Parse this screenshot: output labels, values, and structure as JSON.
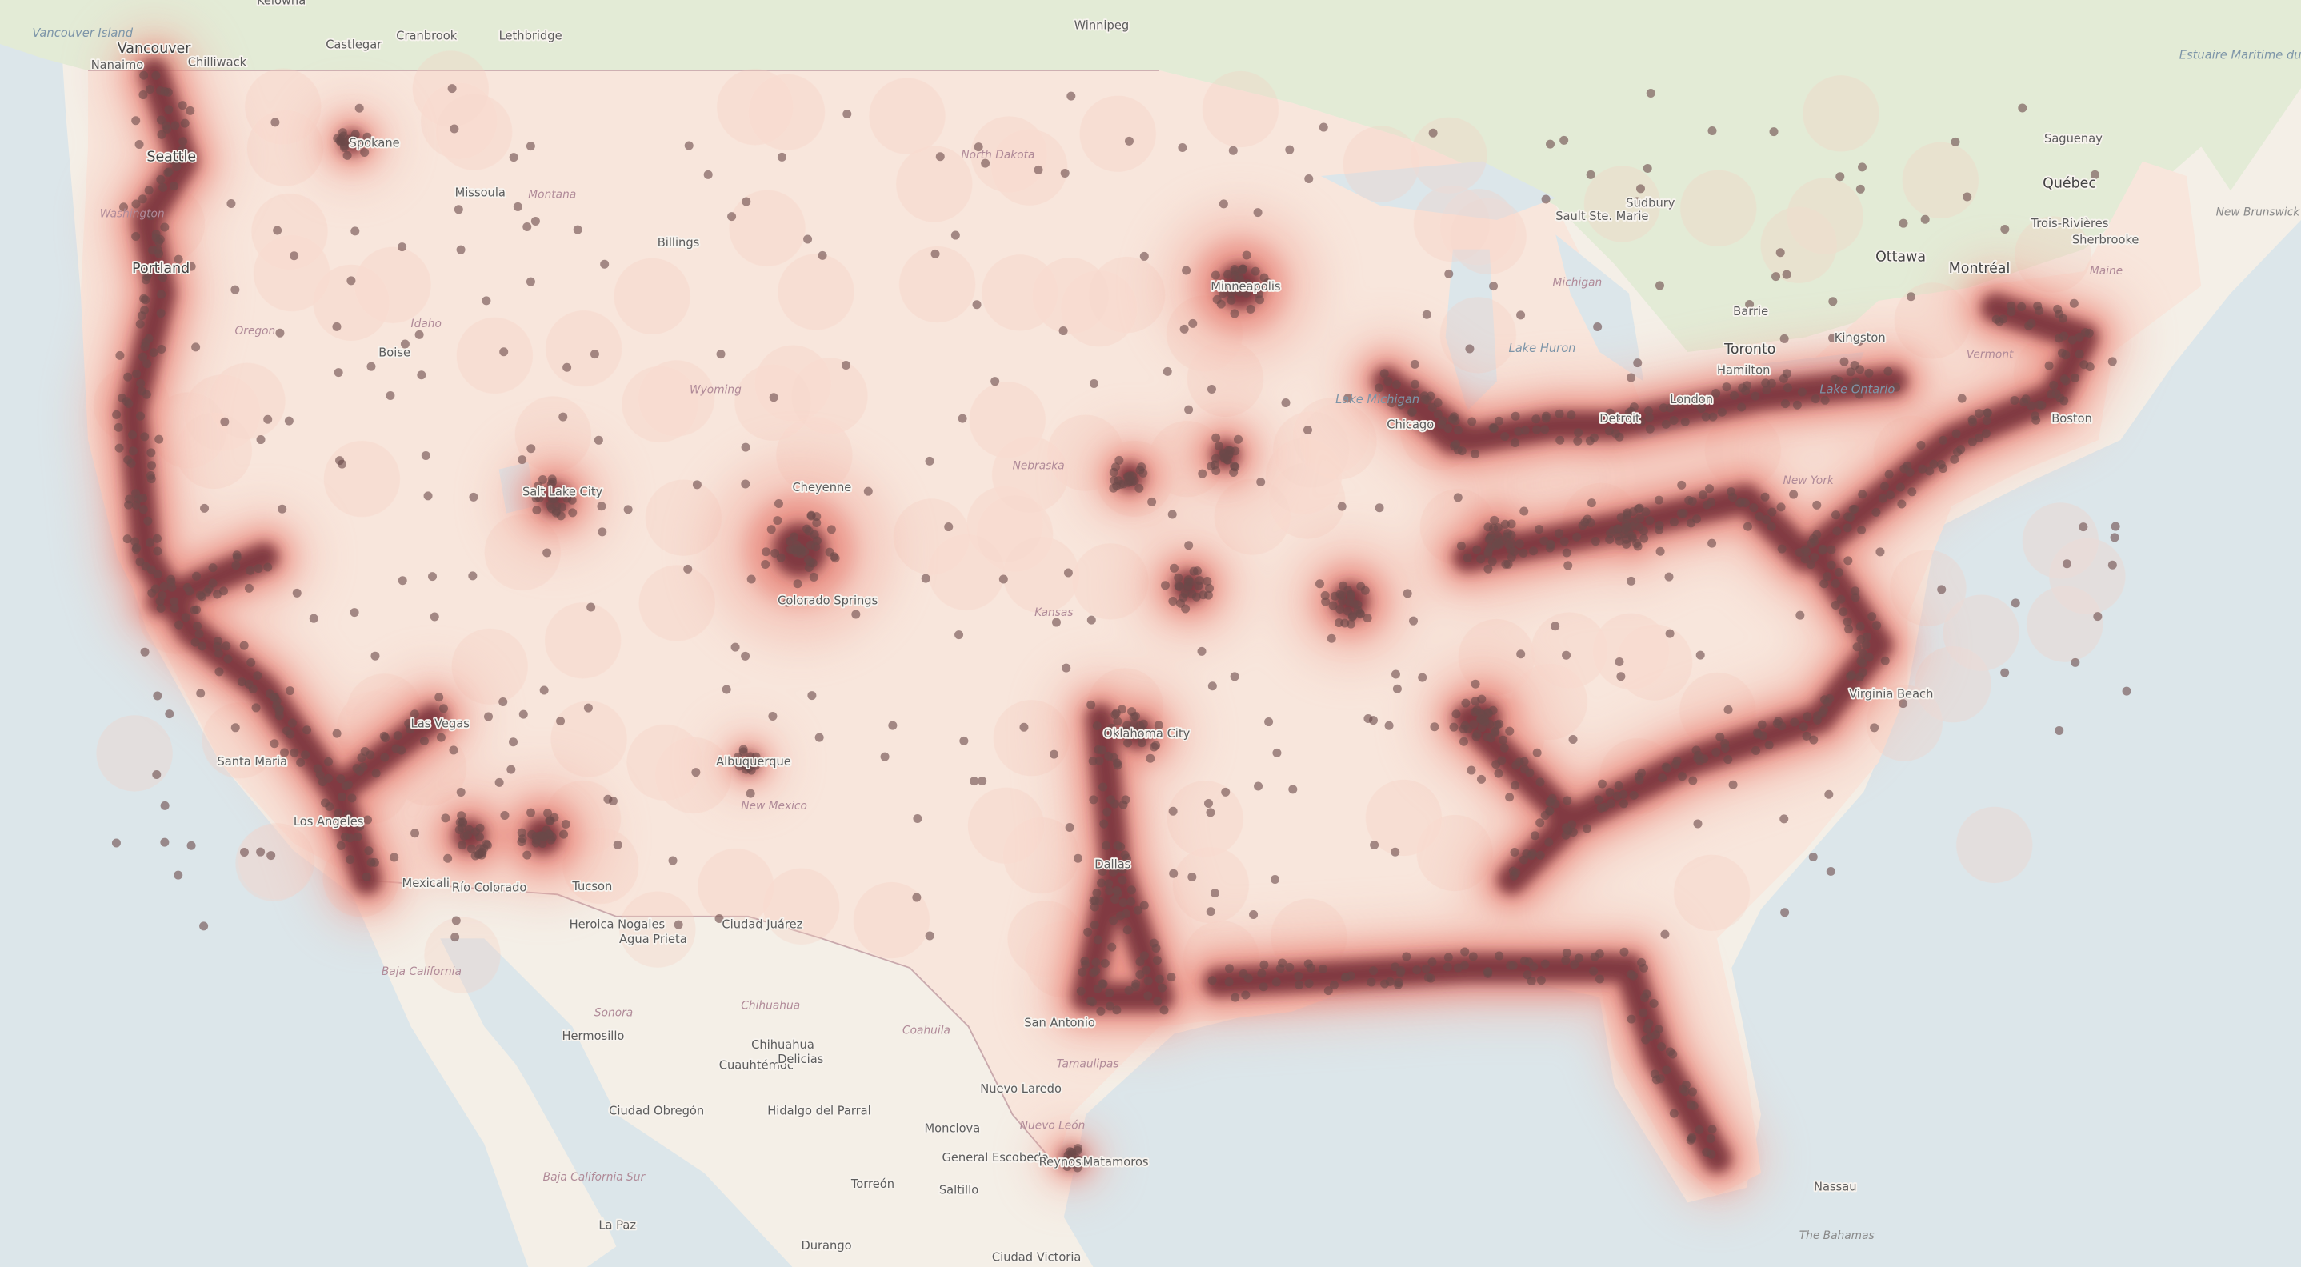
{
  "map": {
    "type": "heatmap-with-points",
    "colors": {
      "ocean": "#dce6ea",
      "land": "#f4efe7",
      "canada_forest": "#e3ebd6",
      "heat_low": "#f7cfc2",
      "heat_mid": "#e26a5e",
      "heat_high": "#6e2a36",
      "point": "#6b4a4a"
    },
    "labels": [
      {
        "text": "Vancouver Island",
        "kind": "water"
      },
      {
        "text": "Vancouver",
        "kind": "big"
      },
      {
        "text": "Nanaimo",
        "kind": "city"
      },
      {
        "text": "Chilliwack",
        "kind": "city"
      },
      {
        "text": "Kelowna",
        "kind": "city"
      },
      {
        "text": "Castlegar",
        "kind": "city"
      },
      {
        "text": "Cranbrook",
        "kind": "city"
      },
      {
        "text": "Lethbridge",
        "kind": "city"
      },
      {
        "text": "Winnipeg",
        "kind": "city"
      },
      {
        "text": "Seattle",
        "kind": "big"
      },
      {
        "text": "Portland",
        "kind": "big"
      },
      {
        "text": "Spokane",
        "kind": "city"
      },
      {
        "text": "Missoula",
        "kind": "city"
      },
      {
        "text": "Billings",
        "kind": "city"
      },
      {
        "text": "Boise",
        "kind": "city"
      },
      {
        "text": "Salt Lake City",
        "kind": "city"
      },
      {
        "text": "Cheyenne",
        "kind": "city"
      },
      {
        "text": "Colorado Springs",
        "kind": "city"
      },
      {
        "text": "Albuquerque",
        "kind": "city"
      },
      {
        "text": "Las Vegas",
        "kind": "city"
      },
      {
        "text": "Los Angeles",
        "kind": "city"
      },
      {
        "text": "Santa Maria",
        "kind": "city"
      },
      {
        "text": "Mexicali",
        "kind": "city"
      },
      {
        "text": "Río Colorado",
        "kind": "city"
      },
      {
        "text": "Tucson",
        "kind": "city"
      },
      {
        "text": "Heroica Nogales",
        "kind": "city"
      },
      {
        "text": "Agua Prieta",
        "kind": "city"
      },
      {
        "text": "Ciudad Juárez",
        "kind": "city"
      },
      {
        "text": "Hermosillo",
        "kind": "city"
      },
      {
        "text": "Chihuahua",
        "kind": "city"
      },
      {
        "text": "Cuauhtémoc",
        "kind": "city"
      },
      {
        "text": "Delicias",
        "kind": "city"
      },
      {
        "text": "Hidalgo del Parral",
        "kind": "city"
      },
      {
        "text": "Ciudad Obregón",
        "kind": "city"
      },
      {
        "text": "Torreón",
        "kind": "city"
      },
      {
        "text": "Monclova",
        "kind": "city"
      },
      {
        "text": "Saltillo",
        "kind": "city"
      },
      {
        "text": "General Escobedo",
        "kind": "city"
      },
      {
        "text": "Nuevo Laredo",
        "kind": "city"
      },
      {
        "text": "Reynosa",
        "kind": "city"
      },
      {
        "text": "Matamoros",
        "kind": "city"
      },
      {
        "text": "Durango",
        "kind": "city"
      },
      {
        "text": "Ciudad Victoria",
        "kind": "city"
      },
      {
        "text": "La Paz",
        "kind": "city"
      },
      {
        "text": "San Antonio",
        "kind": "city"
      },
      {
        "text": "Dallas",
        "kind": "city"
      },
      {
        "text": "Oklahoma City",
        "kind": "city"
      },
      {
        "text": "Minneapolis",
        "kind": "city"
      },
      {
        "text": "Chicago",
        "kind": "city"
      },
      {
        "text": "Detroit",
        "kind": "city"
      },
      {
        "text": "Sault Ste. Marie",
        "kind": "city"
      },
      {
        "text": "Sudbury",
        "kind": "city"
      },
      {
        "text": "Barrie",
        "kind": "city"
      },
      {
        "text": "Toronto",
        "kind": "big"
      },
      {
        "text": "Hamilton",
        "kind": "city"
      },
      {
        "text": "London",
        "kind": "city"
      },
      {
        "text": "Kingston",
        "kind": "city"
      },
      {
        "text": "Ottawa",
        "kind": "big"
      },
      {
        "text": "Montréal",
        "kind": "big"
      },
      {
        "text": "Québec",
        "kind": "big"
      },
      {
        "text": "Trois-Rivières",
        "kind": "city"
      },
      {
        "text": "Sherbrooke",
        "kind": "city"
      },
      {
        "text": "Saguenay",
        "kind": "city"
      },
      {
        "text": "Estuaire Maritime du Fleuve Saint Laurent",
        "kind": "water"
      },
      {
        "text": "New Brunswick / Nouveau-Brunswick",
        "kind": "region"
      },
      {
        "text": "Boston",
        "kind": "city"
      },
      {
        "text": "Virginia Beach",
        "kind": "city"
      },
      {
        "text": "Nassau",
        "kind": "city"
      },
      {
        "text": "The Bahamas",
        "kind": "region"
      },
      {
        "text": "Lake Huron",
        "kind": "water"
      },
      {
        "text": "Lake Michigan",
        "kind": "water"
      },
      {
        "text": "Lake Ontario",
        "kind": "water"
      },
      {
        "text": "Washington",
        "kind": "state"
      },
      {
        "text": "Oregon",
        "kind": "state"
      },
      {
        "text": "Idaho",
        "kind": "state"
      },
      {
        "text": "Montana",
        "kind": "state"
      },
      {
        "text": "Wyoming",
        "kind": "state"
      },
      {
        "text": "North Dakota",
        "kind": "state"
      },
      {
        "text": "Nebraska",
        "kind": "state"
      },
      {
        "text": "Kansas",
        "kind": "state"
      },
      {
        "text": "New Mexico",
        "kind": "state"
      },
      {
        "text": "Michigan",
        "kind": "state"
      },
      {
        "text": "New York",
        "kind": "state"
      },
      {
        "text": "Vermont",
        "kind": "state"
      },
      {
        "text": "Maine",
        "kind": "state"
      },
      {
        "text": "Chihuahua",
        "kind": "state"
      },
      {
        "text": "Sonora",
        "kind": "state"
      },
      {
        "text": "Coahuila",
        "kind": "state"
      },
      {
        "text": "Nuevo León",
        "kind": "state"
      },
      {
        "text": "Tamaulipas",
        "kind": "state"
      },
      {
        "text": "Baja California",
        "kind": "state"
      },
      {
        "text": "Baja California Sur",
        "kind": "state"
      }
    ]
  }
}
